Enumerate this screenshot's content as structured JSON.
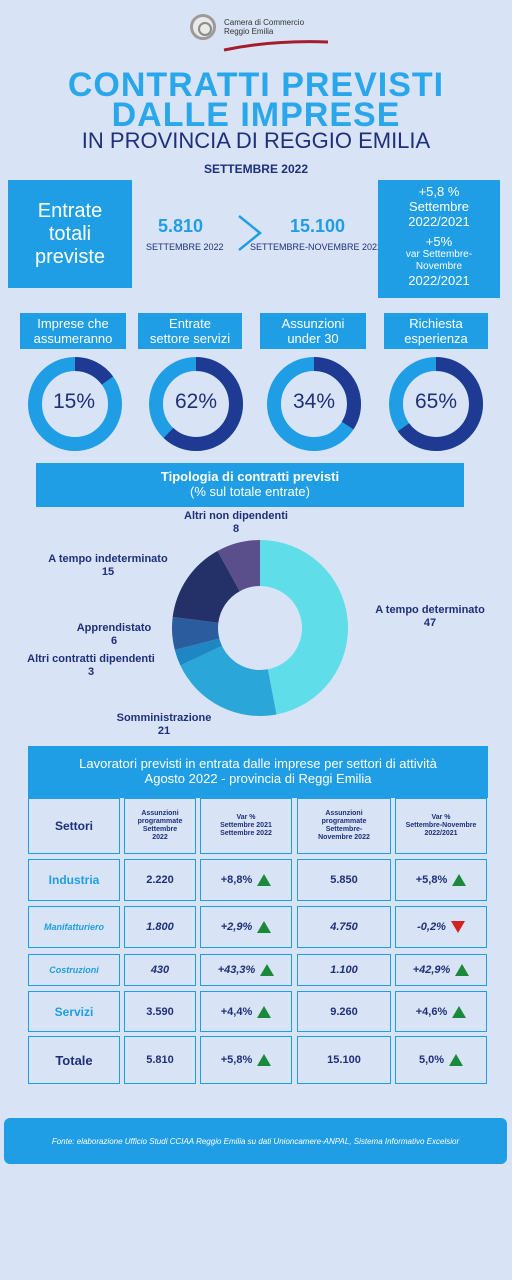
{
  "header": {
    "logo_line1": "Camera di Commercio",
    "logo_line2": "Reggio Emilia",
    "title_line1": "CONTRATTI PREVISTI",
    "title_line2": "DALLE IMPRESE",
    "title_line3": "IN PROVINCIA DI REGGIO EMILIA",
    "date": "SETTEMBRE 2022"
  },
  "entrate": {
    "box_line1": "Entrate",
    "box_line2": "totali",
    "box_line3": "previste",
    "value1": "5.810",
    "label1": "SETTEMBRE 2022",
    "value2": "15.100",
    "label2": "SETTEMBRE-NOVEMBRE 2022",
    "var1_value": "+5,8 %",
    "var1_line1": "Settembre",
    "var1_line2": "2022/2021",
    "var2_value": "+5%",
    "var2_line1": "var Settembre-",
    "var2_line2": "Novembre",
    "var2_line3": "2022/2021"
  },
  "kpis": [
    {
      "label1": "Imprese che",
      "label2": "assumeranno",
      "pct_text": "15%",
      "value": 15
    },
    {
      "label1": "Entrate",
      "label2": "settore servizi",
      "pct_text": "62%",
      "value": 62
    },
    {
      "label1": "Assunzioni",
      "label2": "under 30",
      "pct_text": "34%",
      "value": 34
    },
    {
      "label1": "Richiesta",
      "label2": "esperienza",
      "pct_text": "65%",
      "value": 65
    }
  ],
  "pie_section": {
    "title_line1": "Tipologia di contratti previsti",
    "title_line2": "(% sul totale entrate)"
  },
  "chart_data": {
    "type": "pie",
    "title": "Tipologia di contratti previsti",
    "subtitle": "(% sul totale entrate)",
    "categories": [
      "A tempo determinato",
      "Somministrazione",
      "Altri contratti dipendenti",
      "Apprendistato",
      "A tempo indeterminato",
      "Altri non dipendenti"
    ],
    "values": [
      47,
      21,
      3,
      6,
      15,
      8
    ],
    "colors": [
      "#5fdde8",
      "#2aa6d8",
      "#1e86c2",
      "#2a5c9e",
      "#243168",
      "#5a4f8a"
    ]
  },
  "table": {
    "title_line1": "Lavoratori previsti in entrata dalle imprese per settori di attività",
    "title_line2": "Agosto 2022 - provincia di Reggi Emilia",
    "headers": {
      "settori": "Settori",
      "ass_set_1": "Assunzioni",
      "ass_set_2": "programmate",
      "ass_set_3": "Settembre",
      "ass_set_4": "2022",
      "var_set_1": "Var %",
      "var_set_2": "Settembre 2021",
      "var_set_3": "Settembre 2022",
      "ass_sn_1": "Assunzioni",
      "ass_sn_2": "programmate",
      "ass_sn_3": "Settembre-",
      "ass_sn_4": "Novembre 2022",
      "var_sn_1": "Var %",
      "var_sn_2": "Settembre-Novembre",
      "var_sn_3": "2022/2021"
    },
    "rows": [
      {
        "name": "Industria",
        "ass_set": "2.220",
        "var_set": "+8,8%",
        "ass_sn": "5.850",
        "var_sn": "+5,8%",
        "dir_set": "up",
        "dir_sn": "up"
      },
      {
        "name": "Manifatturiero",
        "ass_set": "1.800",
        "var_set": "+2,9%",
        "ass_sn": "4.750",
        "var_sn": "-0,2%",
        "dir_set": "up",
        "dir_sn": "down"
      },
      {
        "name": "Costruzioni",
        "ass_set": "430",
        "var_set": "+43,3%",
        "ass_sn": "1.100",
        "var_sn": "+42,9%",
        "dir_set": "up",
        "dir_sn": "up"
      },
      {
        "name": "Servizi",
        "ass_set": "3.590",
        "var_set": "+4,4%",
        "ass_sn": "9.260",
        "var_sn": "+4,6%",
        "dir_set": "up",
        "dir_sn": "up"
      },
      {
        "name": "Totale",
        "ass_set": "5.810",
        "var_set": "+5,8%",
        "ass_sn": "15.100",
        "var_sn": "5,0%",
        "dir_set": "up",
        "dir_sn": "up"
      }
    ]
  },
  "footer": {
    "text": "Fonte: elaborazione Ufficio Studi CCIAA Reggio Emilia su dati Unioncamere-ANPAL, Sistema Informativo Excelsior"
  }
}
